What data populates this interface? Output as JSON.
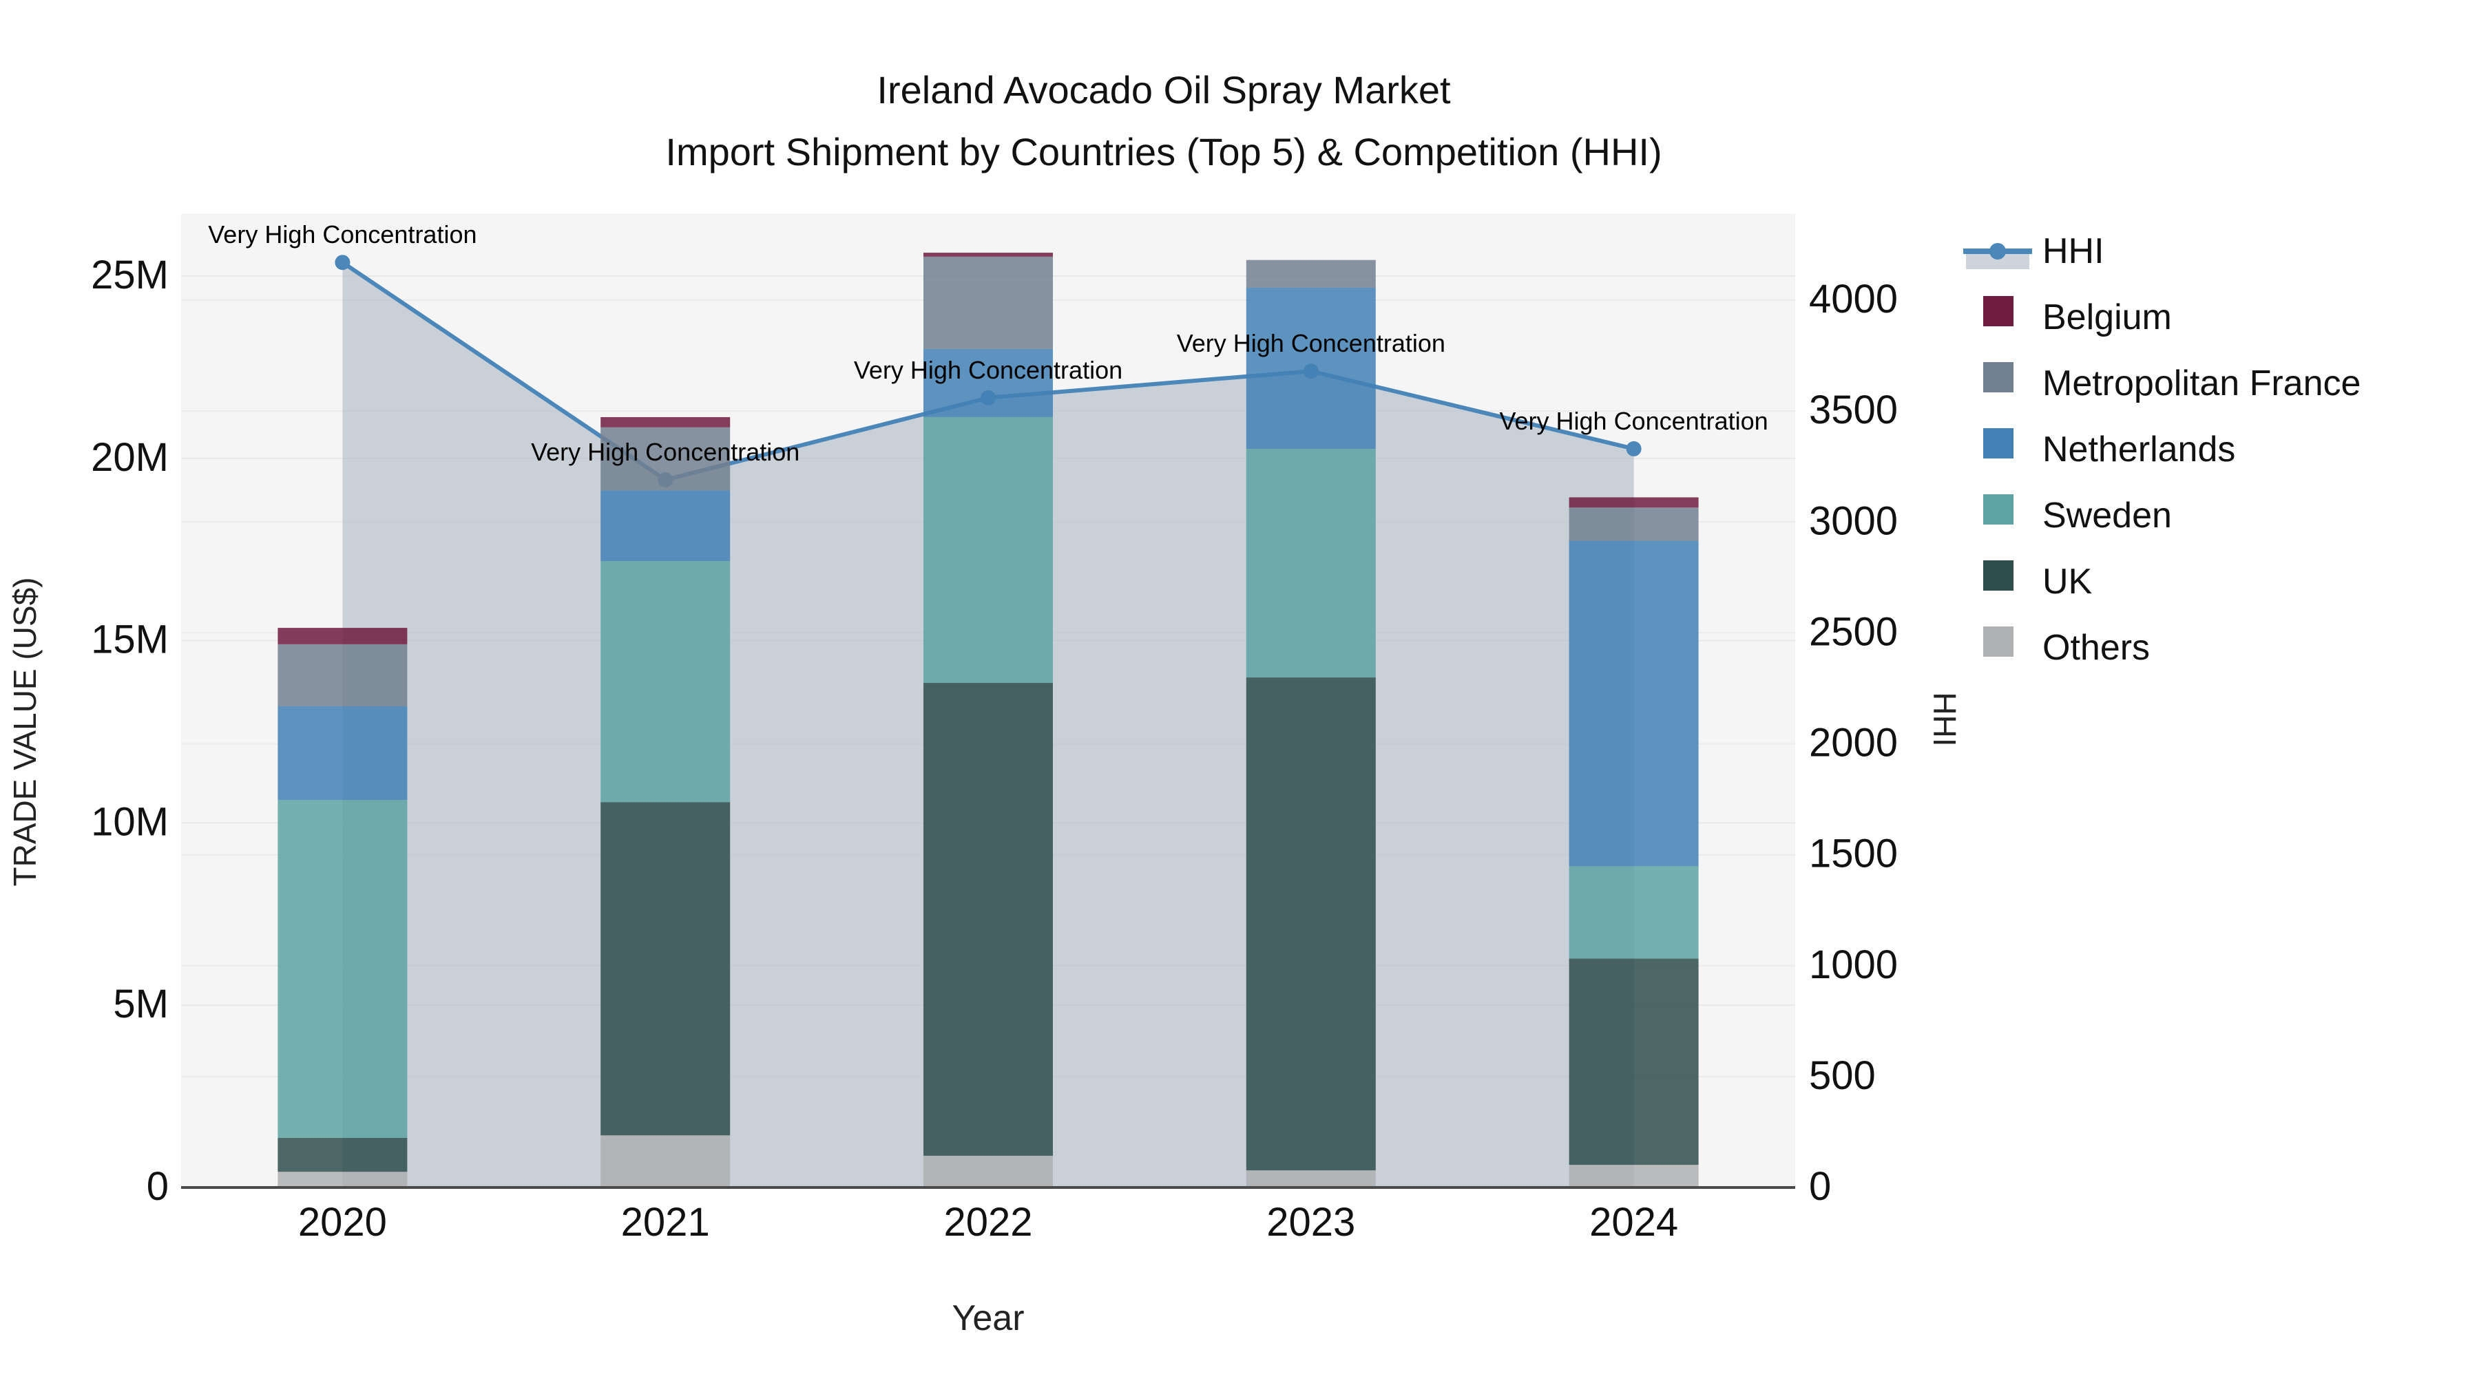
{
  "title": {
    "line1": "Ireland Avocado Oil Spray Market",
    "line2": "Import Shipment by Countries (Top 5) & Competition (HHI)"
  },
  "axes": {
    "left": {
      "label": "TRADE VALUE (US$)",
      "tick_labels": [
        "0",
        "5M",
        "10M",
        "15M",
        "20M",
        "25M"
      ],
      "tick_values_musd": [
        0,
        5,
        10,
        15,
        20,
        25
      ],
      "max_musd": 25
    },
    "right": {
      "label": "HHI",
      "tick_labels": [
        "0",
        "500",
        "1000",
        "1500",
        "2000",
        "2500",
        "3000",
        "3500",
        "4000"
      ],
      "tick_values": [
        0,
        500,
        1000,
        1500,
        2000,
        2500,
        3000,
        3500,
        4000
      ],
      "max": 4000
    },
    "x": {
      "label": "Year",
      "categories": [
        "2020",
        "2021",
        "2022",
        "2023",
        "2024"
      ]
    }
  },
  "legend": {
    "items": [
      {
        "label": "HHI",
        "type": "line",
        "color": "#4C87B9"
      },
      {
        "label": "Belgium",
        "type": "swatch",
        "color": "#6E1C3F"
      },
      {
        "label": "Metropolitan France",
        "type": "swatch",
        "color": "#72808F"
      },
      {
        "label": "Netherlands",
        "type": "swatch",
        "color": "#4381B5"
      },
      {
        "label": "Sweden",
        "type": "swatch",
        "color": "#5EA3A3"
      },
      {
        "label": "UK",
        "type": "swatch",
        "color": "#2F4D4D"
      },
      {
        "label": "Others",
        "type": "swatch",
        "color": "#AEB0B2"
      }
    ]
  },
  "chart_data": {
    "type": "bar",
    "subtype": "stacked-bars-with-line-overlay",
    "categories": [
      "2020",
      "2021",
      "2022",
      "2023",
      "2024"
    ],
    "bar_value_unit": "million US$",
    "stack_order_bottom_to_top": [
      "Others",
      "UK",
      "Sweden",
      "Netherlands",
      "Metropolitan France",
      "Belgium"
    ],
    "series": [
      {
        "name": "Belgium",
        "color": "#6E1C3F",
        "values": [
          0.45,
          0.28,
          0.11,
          0.0,
          0.28
        ]
      },
      {
        "name": "Metropolitan France",
        "color": "#72808F",
        "values": [
          1.7,
          1.73,
          2.53,
          0.76,
          0.91
        ]
      },
      {
        "name": "Netherlands",
        "color": "#4381B5",
        "values": [
          2.57,
          1.94,
          1.87,
          4.42,
          8.93
        ]
      },
      {
        "name": "Sweden",
        "color": "#5EA3A3",
        "values": [
          9.27,
          6.61,
          7.29,
          6.27,
          2.53
        ]
      },
      {
        "name": "UK",
        "color": "#2F4D4D",
        "values": [
          0.93,
          9.14,
          12.97,
          13.52,
          5.66
        ]
      },
      {
        "name": "Others",
        "color": "#AEB0B2",
        "values": [
          0.43,
          1.43,
          0.87,
          0.47,
          0.62
        ]
      }
    ],
    "bar_totals_musd": [
      15.35,
      21.13,
      25.64,
      25.44,
      18.93
    ],
    "line_series": {
      "name": "HHI",
      "axis": "right",
      "color": "#4C87B9",
      "area_color": "#AFB9C7",
      "values": [
        4170,
        3190,
        3560,
        3680,
        3330
      ]
    },
    "annotations": [
      {
        "text": "Very High Concentration",
        "category": "2020"
      },
      {
        "text": "Very High Concentration",
        "category": "2021"
      },
      {
        "text": "Very High Concentration",
        "category": "2022"
      },
      {
        "text": "Very High Concentration",
        "category": "2023"
      },
      {
        "text": "Very High Concentration",
        "category": "2024"
      }
    ],
    "ylim_left_musd": [
      0,
      26.7
    ],
    "ylim_right": [
      0,
      4390
    ],
    "grid": true,
    "legend_position": "right"
  }
}
